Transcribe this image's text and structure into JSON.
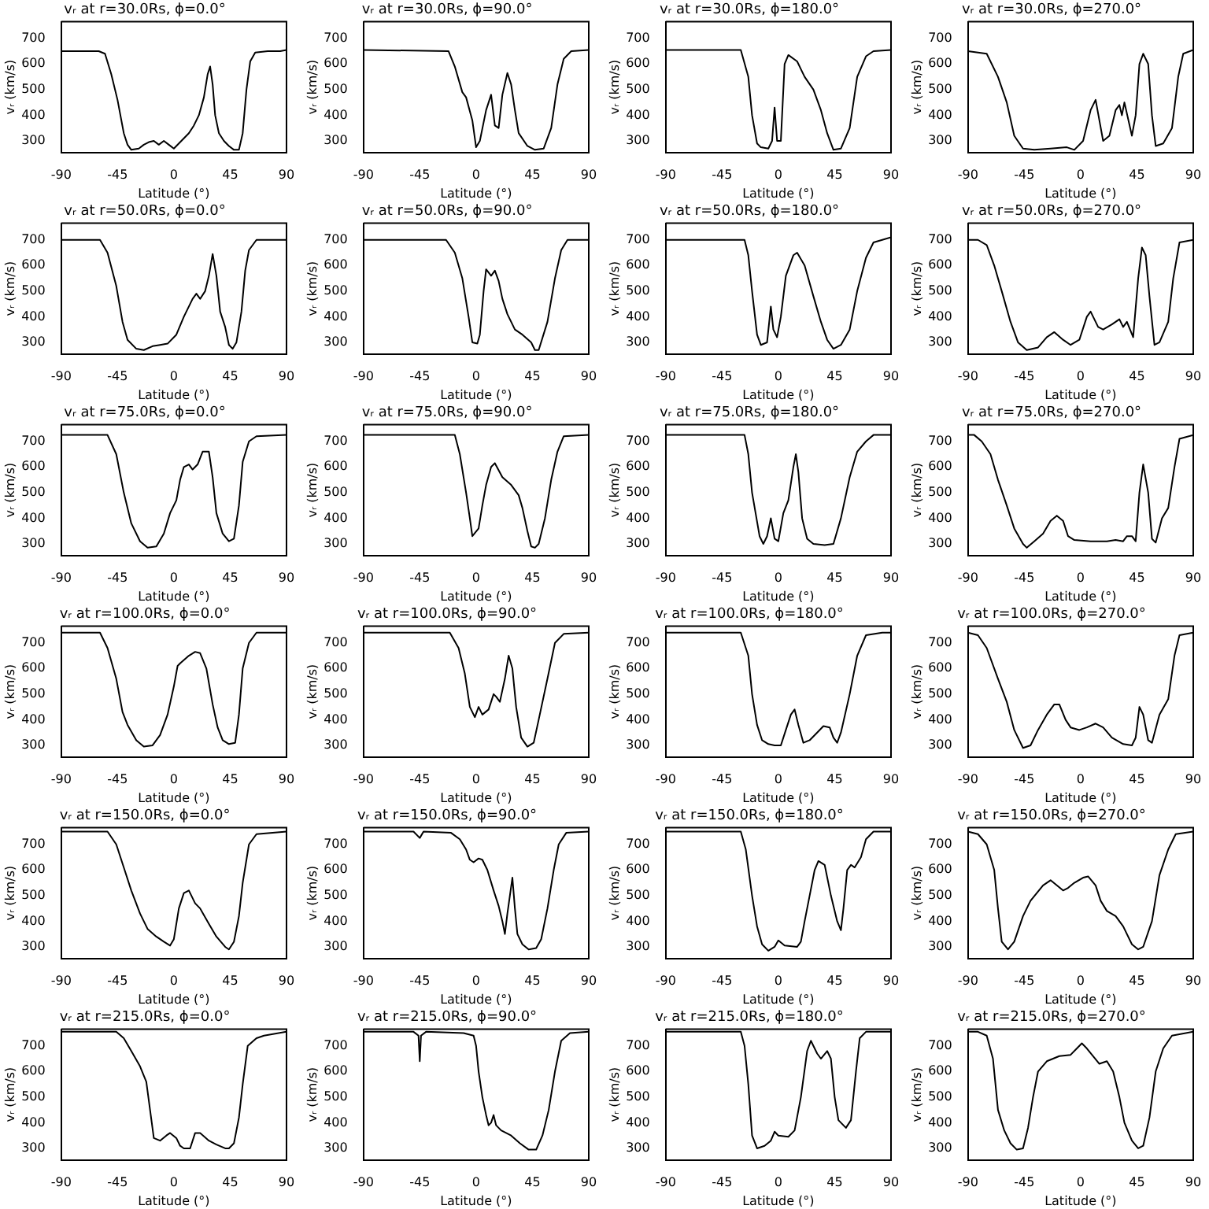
{
  "chart_data": [
    {
      "type": "line",
      "title": "vᵣ at r=30.0Rs, ϕ=0.0°",
      "xlabel": "Latitude (°)",
      "ylabel": "vᵣ (km/s)",
      "color": "#000000",
      "xlim": [
        -90,
        90
      ],
      "ylim": [
        255,
        765
      ],
      "xticks": [
        -90,
        -45,
        0,
        45,
        90
      ],
      "yticks": [
        300,
        400,
        500,
        600,
        700
      ],
      "x": [
        -90,
        -60,
        -55,
        -50,
        -45,
        -40,
        -37,
        -34,
        -28,
        -24,
        -20,
        -16,
        -12,
        -8,
        -4,
        0,
        4,
        8,
        12,
        16,
        20,
        24,
        27,
        29,
        31,
        33,
        36,
        40,
        44,
        48,
        52,
        55,
        58,
        61,
        65,
        75,
        85,
        90
      ],
      "values": [
        650,
        650,
        640,
        560,
        460,
        330,
        285,
        265,
        270,
        285,
        295,
        300,
        285,
        300,
        285,
        270,
        290,
        310,
        330,
        360,
        400,
        470,
        560,
        590,
        520,
        400,
        330,
        300,
        280,
        265,
        265,
        330,
        500,
        610,
        645,
        650,
        650,
        655
      ]
    },
    {
      "type": "line",
      "title": "vᵣ at r=30.0Rs, ϕ=90.0°",
      "xlabel": "Latitude (°)",
      "ylabel": "vᵣ (km/s)",
      "color": "#000000",
      "xlim": [
        -90,
        90
      ],
      "ylim": [
        255,
        765
      ],
      "xticks": [
        -90,
        -45,
        0,
        45,
        90
      ],
      "yticks": [
        300,
        400,
        500,
        600,
        700
      ],
      "x": [
        -90,
        -22,
        -17,
        -11,
        -8,
        -3,
        0,
        3,
        8,
        12,
        15,
        18,
        21,
        25,
        28,
        31,
        34,
        41,
        47,
        54,
        60,
        65,
        70,
        76,
        90
      ],
      "values": [
        655,
        650,
        590,
        490,
        470,
        380,
        275,
        300,
        420,
        480,
        360,
        350,
        480,
        565,
        520,
        420,
        330,
        280,
        265,
        270,
        350,
        520,
        620,
        650,
        655
      ]
    },
    {
      "type": "line",
      "title": "vᵣ at r=30.0Rs, ϕ=180.0°",
      "xlabel": "Latitude (°)",
      "ylabel": "vᵣ (km/s)",
      "color": "#000000",
      "xlim": [
        -90,
        90
      ],
      "ylim": [
        255,
        765
      ],
      "xticks": [
        -90,
        -45,
        0,
        45,
        90
      ],
      "yticks": [
        300,
        400,
        500,
        600,
        700
      ],
      "x": [
        -90,
        -30,
        -24,
        -21,
        -17,
        -14,
        -8,
        -5,
        -3,
        -1,
        2,
        5,
        8,
        15,
        21,
        28,
        34,
        39,
        44,
        50,
        57,
        63,
        70,
        76,
        90
      ],
      "values": [
        655,
        655,
        550,
        400,
        290,
        275,
        270,
        300,
        430,
        300,
        300,
        600,
        635,
        610,
        550,
        500,
        420,
        330,
        265,
        270,
        350,
        550,
        630,
        650,
        655
      ]
    },
    {
      "type": "line",
      "title": "vᵣ at r=30.0Rs, ϕ=270.0°",
      "xlabel": "Latitude (°)",
      "ylabel": "vᵣ (km/s)",
      "color": "#000000",
      "xlim": [
        -90,
        90
      ],
      "ylim": [
        255,
        765
      ],
      "xticks": [
        -90,
        -45,
        0,
        45,
        90
      ],
      "yticks": [
        300,
        400,
        500,
        600,
        700
      ],
      "x": [
        -90,
        -75,
        -66,
        -59,
        -53,
        -46,
        -37,
        -24,
        -11,
        -5,
        2,
        8,
        12,
        15,
        18,
        23,
        28,
        31,
        33,
        35,
        41,
        44,
        47,
        50,
        54,
        57,
        60,
        66,
        73,
        78,
        82,
        90
      ],
      "values": [
        650,
        640,
        550,
        450,
        320,
        270,
        265,
        270,
        275,
        265,
        300,
        420,
        460,
        380,
        300,
        320,
        420,
        440,
        400,
        450,
        320,
        400,
        600,
        640,
        600,
        400,
        280,
        290,
        350,
        550,
        640,
        655
      ]
    },
    {
      "type": "line",
      "title": "vᵣ at r=50.0Rs, ϕ=0.0°",
      "xlabel": "Latitude (°)",
      "ylabel": "vᵣ (km/s)",
      "color": "#000000",
      "xlim": [
        -90,
        90
      ],
      "ylim": [
        255,
        765
      ],
      "xticks": [
        -90,
        -45,
        0,
        45,
        90
      ],
      "yticks": [
        300,
        400,
        500,
        600,
        700
      ],
      "x": [
        -90,
        -59,
        -53,
        -46,
        -41,
        -37,
        -30,
        -24,
        -17,
        -11,
        -5,
        2,
        8,
        15,
        18,
        21,
        25,
        28,
        31,
        34,
        37,
        41,
        44,
        47,
        50,
        54,
        57,
        60,
        66,
        90
      ],
      "values": [
        700,
        700,
        650,
        520,
        380,
        310,
        275,
        270,
        285,
        290,
        295,
        330,
        400,
        470,
        490,
        470,
        500,
        560,
        645,
        560,
        420,
        360,
        290,
        275,
        300,
        420,
        580,
        660,
        700,
        700
      ]
    },
    {
      "type": "line",
      "title": "vᵣ at r=50.0Rs, ϕ=90.0°",
      "xlabel": "Latitude (°)",
      "ylabel": "vᵣ (km/s)",
      "color": "#000000",
      "xlim": [
        -90,
        90
      ],
      "ylim": [
        255,
        765
      ],
      "xticks": [
        -90,
        -45,
        0,
        45,
        90
      ],
      "yticks": [
        300,
        400,
        500,
        600,
        700
      ],
      "x": [
        -90,
        -24,
        -17,
        -11,
        -6,
        -3,
        1,
        3,
        6,
        8,
        12,
        15,
        18,
        21,
        25,
        31,
        37,
        44,
        47,
        50,
        57,
        63,
        68,
        73,
        90
      ],
      "values": [
        700,
        700,
        650,
        550,
        400,
        300,
        295,
        330,
        500,
        585,
        560,
        580,
        540,
        470,
        410,
        350,
        330,
        300,
        270,
        270,
        380,
        550,
        660,
        700,
        700
      ]
    },
    {
      "type": "line",
      "title": "vᵣ at r=50.0Rs, ϕ=180.0°",
      "xlabel": "Latitude (°)",
      "ylabel": "vᵣ (km/s)",
      "color": "#000000",
      "xlim": [
        -90,
        90
      ],
      "ylim": [
        255,
        765
      ],
      "xticks": [
        -90,
        -45,
        0,
        45,
        90
      ],
      "yticks": [
        300,
        400,
        500,
        600,
        700
      ],
      "x": [
        -90,
        -27,
        -24,
        -21,
        -17,
        -14,
        -9,
        -6,
        -4,
        -1,
        2,
        6,
        12,
        15,
        21,
        28,
        34,
        39,
        44,
        50,
        57,
        63,
        70,
        76,
        83,
        90
      ],
      "values": [
        700,
        700,
        640,
        500,
        330,
        290,
        300,
        440,
        350,
        320,
        400,
        560,
        640,
        650,
        600,
        480,
        380,
        310,
        275,
        290,
        350,
        500,
        630,
        690,
        700,
        710
      ]
    },
    {
      "type": "line",
      "title": "vᵣ at r=50.0Rs, ϕ=270.0°",
      "xlabel": "Latitude (°)",
      "ylabel": "vᵣ (km/s)",
      "color": "#000000",
      "xlim": [
        -90,
        90
      ],
      "ylim": [
        255,
        765
      ],
      "xticks": [
        -90,
        -45,
        0,
        45,
        90
      ],
      "yticks": [
        300,
        400,
        500,
        600,
        700
      ],
      "x": [
        -90,
        -82,
        -75,
        -69,
        -63,
        -56,
        -50,
        -43,
        -34,
        -27,
        -21,
        -14,
        -8,
        -1,
        5,
        8,
        14,
        18,
        25,
        31,
        34,
        37,
        42,
        46,
        49,
        52,
        55,
        59,
        63,
        70,
        74,
        79,
        90
      ],
      "values": [
        700,
        700,
        680,
        600,
        500,
        380,
        300,
        270,
        280,
        320,
        340,
        310,
        290,
        310,
        400,
        420,
        360,
        350,
        370,
        390,
        360,
        380,
        320,
        550,
        670,
        640,
        480,
        290,
        300,
        380,
        550,
        690,
        700
      ]
    },
    {
      "type": "line",
      "title": "vᵣ at r=75.0Rs, ϕ=0.0°",
      "xlabel": "Latitude (°)",
      "ylabel": "vᵣ (km/s)",
      "color": "#000000",
      "xlim": [
        -90,
        90
      ],
      "ylim": [
        255,
        765
      ],
      "xticks": [
        -90,
        -45,
        0,
        45,
        90
      ],
      "yticks": [
        300,
        400,
        500,
        600,
        700
      ],
      "x": [
        -90,
        -53,
        -46,
        -40,
        -34,
        -27,
        -21,
        -14,
        -8,
        -3,
        2,
        5,
        8,
        12,
        15,
        19,
        23,
        28,
        31,
        34,
        39,
        44,
        48,
        52,
        55,
        60,
        66,
        90
      ],
      "values": [
        725,
        725,
        650,
        500,
        380,
        310,
        285,
        290,
        340,
        420,
        470,
        550,
        600,
        610,
        590,
        610,
        660,
        660,
        560,
        420,
        340,
        310,
        320,
        450,
        620,
        700,
        720,
        725
      ]
    },
    {
      "type": "line",
      "title": "vᵣ at r=75.0Rs, ϕ=90.0°",
      "xlabel": "Latitude (°)",
      "ylabel": "vᵣ (km/s)",
      "color": "#000000",
      "xlim": [
        -90,
        90
      ],
      "ylim": [
        255,
        765
      ],
      "xticks": [
        -90,
        -45,
        0,
        45,
        90
      ],
      "yticks": [
        300,
        400,
        500,
        600,
        700
      ],
      "x": [
        -90,
        -17,
        -13,
        -8,
        -5,
        -3,
        2,
        5,
        8,
        12,
        15,
        21,
        28,
        34,
        37,
        41,
        44,
        47,
        50,
        55,
        60,
        65,
        70,
        90
      ],
      "values": [
        725,
        725,
        650,
        500,
        400,
        330,
        360,
        450,
        530,
        600,
        615,
        560,
        530,
        490,
        440,
        350,
        290,
        285,
        300,
        400,
        550,
        660,
        720,
        725
      ]
    },
    {
      "type": "line",
      "title": "vᵣ at r=75.0Rs, ϕ=180.0°",
      "xlabel": "Latitude (°)",
      "ylabel": "vᵣ (km/s)",
      "color": "#000000",
      "xlim": [
        -90,
        90
      ],
      "ylim": [
        255,
        765
      ],
      "xticks": [
        -90,
        -45,
        0,
        45,
        90
      ],
      "yticks": [
        300,
        400,
        500,
        600,
        700
      ],
      "x": [
        -90,
        -27,
        -24,
        -21,
        -15,
        -12,
        -9,
        -6,
        -3,
        0,
        4,
        8,
        12,
        14,
        16,
        19,
        23,
        28,
        37,
        44,
        50,
        57,
        63,
        70,
        76,
        90
      ],
      "values": [
        725,
        725,
        650,
        500,
        330,
        300,
        330,
        400,
        320,
        310,
        420,
        470,
        600,
        650,
        580,
        400,
        320,
        300,
        295,
        300,
        400,
        560,
        660,
        700,
        725,
        725
      ]
    },
    {
      "type": "line",
      "title": "vᵣ at r=75.0Rs, ϕ=270.0°",
      "xlabel": "Latitude (°)",
      "ylabel": "vᵣ (km/s)",
      "color": "#000000",
      "xlim": [
        -90,
        90
      ],
      "ylim": [
        255,
        765
      ],
      "xticks": [
        -90,
        -45,
        0,
        45,
        90
      ],
      "yticks": [
        300,
        400,
        500,
        600,
        700
      ],
      "x": [
        -90,
        -85,
        -79,
        -72,
        -66,
        -59,
        -53,
        -46,
        -43,
        -37,
        -30,
        -24,
        -19,
        -14,
        -10,
        -5,
        8,
        21,
        28,
        34,
        37,
        41,
        44,
        47,
        50,
        54,
        57,
        60,
        65,
        70,
        75,
        79,
        90
      ],
      "values": [
        725,
        725,
        700,
        650,
        550,
        450,
        360,
        300,
        285,
        310,
        340,
        390,
        410,
        390,
        330,
        315,
        310,
        310,
        315,
        310,
        330,
        330,
        310,
        500,
        610,
        500,
        320,
        305,
        400,
        440,
        600,
        710,
        725
      ]
    },
    {
      "type": "line",
      "title": "vᵣ at r=100.0Rs, ϕ=0.0°",
      "xlabel": "Latitude (°)",
      "ylabel": "vᵣ (km/s)",
      "color": "#000000",
      "xlim": [
        -90,
        90
      ],
      "ylim": [
        255,
        765
      ],
      "xticks": [
        -90,
        -45,
        0,
        45,
        90
      ],
      "yticks": [
        300,
        400,
        500,
        600,
        700
      ],
      "x": [
        -90,
        -59,
        -53,
        -46,
        -41,
        -37,
        -30,
        -24,
        -17,
        -11,
        -5,
        0,
        3,
        5,
        12,
        17,
        21,
        26,
        31,
        35,
        39,
        44,
        49,
        52,
        55,
        60,
        66,
        90
      ],
      "values": [
        740,
        740,
        680,
        560,
        430,
        380,
        320,
        295,
        300,
        340,
        420,
        530,
        610,
        620,
        650,
        665,
        660,
        600,
        460,
        370,
        320,
        305,
        310,
        420,
        600,
        700,
        740,
        740
      ]
    },
    {
      "type": "line",
      "title": "vᵣ at r=100.0Rs, ϕ=90.0°",
      "xlabel": "Latitude (°)",
      "ylabel": "vᵣ (km/s)",
      "color": "#000000",
      "xlim": [
        -90,
        90
      ],
      "ylim": [
        255,
        765
      ],
      "xticks": [
        -90,
        -45,
        0,
        45,
        90
      ],
      "yticks": [
        300,
        400,
        500,
        600,
        700
      ],
      "x": [
        -90,
        -21,
        -14,
        -9,
        -5,
        -1,
        2,
        5,
        10,
        14,
        16,
        19,
        23,
        26,
        29,
        32,
        36,
        41,
        46,
        50,
        57,
        63,
        70,
        90
      ],
      "values": [
        740,
        740,
        680,
        580,
        450,
        410,
        450,
        420,
        440,
        500,
        490,
        470,
        560,
        650,
        600,
        450,
        330,
        295,
        310,
        400,
        560,
        700,
        735,
        740
      ]
    },
    {
      "type": "line",
      "title": "vᵣ at r=100.0Rs, ϕ=180.0°",
      "xlabel": "Latitude (°)",
      "ylabel": "vᵣ (km/s)",
      "color": "#000000",
      "xlim": [
        -90,
        90
      ],
      "ylim": [
        255,
        765
      ],
      "xticks": [
        -90,
        -45,
        0,
        45,
        90
      ],
      "yticks": [
        300,
        400,
        500,
        600,
        700
      ],
      "x": [
        -90,
        -30,
        -24,
        -21,
        -17,
        -13,
        -8,
        -3,
        2,
        6,
        10,
        13,
        16,
        20,
        25,
        31,
        36,
        41,
        44,
        47,
        50,
        57,
        63,
        70,
        83,
        90
      ],
      "values": [
        740,
        740,
        650,
        500,
        380,
        320,
        305,
        300,
        300,
        360,
        420,
        440,
        380,
        310,
        320,
        350,
        375,
        370,
        330,
        310,
        350,
        500,
        650,
        730,
        740,
        740
      ]
    },
    {
      "type": "line",
      "title": "vᵣ at r=100.0Rs, ϕ=270.0°",
      "xlabel": "Latitude (°)",
      "ylabel": "vᵣ (km/s)",
      "color": "#000000",
      "xlim": [
        -90,
        90
      ],
      "ylim": [
        255,
        765
      ],
      "xticks": [
        -90,
        -45,
        0,
        45,
        90
      ],
      "yticks": [
        300,
        400,
        500,
        600,
        700
      ],
      "x": [
        -90,
        -82,
        -75,
        -66,
        -59,
        -53,
        -46,
        -40,
        -34,
        -27,
        -21,
        -17,
        -12,
        -8,
        -1,
        5,
        12,
        18,
        25,
        34,
        41,
        44,
        47,
        50,
        54,
        57,
        63,
        70,
        75,
        79,
        90
      ],
      "values": [
        740,
        730,
        680,
        560,
        470,
        360,
        290,
        300,
        360,
        420,
        460,
        460,
        400,
        370,
        360,
        370,
        385,
        370,
        330,
        305,
        300,
        330,
        450,
        420,
        320,
        310,
        420,
        480,
        650,
        730,
        740
      ]
    },
    {
      "type": "line",
      "title": "vᵣ at r=150.0Rs, ϕ=0.0°",
      "xlabel": "Latitude (°)",
      "ylabel": "vᵣ (km/s)",
      "color": "#000000",
      "xlim": [
        -90,
        90
      ],
      "ylim": [
        255,
        765
      ],
      "xticks": [
        -90,
        -45,
        0,
        45,
        90
      ],
      "yticks": [
        300,
        400,
        500,
        600,
        700
      ],
      "x": [
        -90,
        -53,
        -46,
        -40,
        -34,
        -27,
        -21,
        -14,
        -8,
        -3,
        0,
        4,
        8,
        12,
        17,
        21,
        28,
        34,
        41,
        44,
        48,
        52,
        55,
        60,
        66,
        90
      ],
      "values": [
        750,
        750,
        700,
        610,
        520,
        430,
        370,
        340,
        320,
        305,
        330,
        450,
        510,
        520,
        470,
        450,
        390,
        340,
        300,
        290,
        320,
        420,
        550,
        700,
        740,
        750
      ]
    },
    {
      "type": "line",
      "title": "vᵣ at r=150.0Rs, ϕ=90.0°",
      "xlabel": "Latitude (°)",
      "ylabel": "vᵣ (km/s)",
      "color": "#000000",
      "xlim": [
        -90,
        90
      ],
      "ylim": [
        255,
        765
      ],
      "xticks": [
        -90,
        -45,
        0,
        45,
        90
      ],
      "yticks": [
        300,
        400,
        500,
        600,
        700
      ],
      "x": [
        -90,
        -50,
        -45,
        -42,
        -20,
        -13,
        -8,
        -5,
        -2,
        2,
        5,
        9,
        14,
        18,
        21,
        23,
        25,
        27,
        29,
        31,
        33,
        37,
        42,
        48,
        52,
        57,
        62,
        66,
        72,
        90
      ],
      "values": [
        750,
        750,
        725,
        750,
        745,
        720,
        680,
        640,
        630,
        645,
        640,
        600,
        520,
        460,
        400,
        350,
        430,
        500,
        570,
        450,
        350,
        310,
        290,
        295,
        330,
        450,
        600,
        700,
        745,
        750
      ]
    },
    {
      "type": "line",
      "title": "vᵣ at r=150.0Rs, ϕ=180.0°",
      "xlabel": "Latitude (°)",
      "ylabel": "vᵣ (km/s)",
      "color": "#000000",
      "xlim": [
        -90,
        90
      ],
      "ylim": [
        255,
        765
      ],
      "xticks": [
        -90,
        -45,
        0,
        45,
        90
      ],
      "yticks": [
        300,
        400,
        500,
        600,
        700
      ],
      "x": [
        -90,
        -30,
        -26,
        -21,
        -17,
        -13,
        -8,
        -3,
        0,
        5,
        15,
        18,
        21,
        25,
        29,
        32,
        37,
        42,
        47,
        50,
        52,
        55,
        58,
        61,
        66,
        70,
        76,
        90
      ],
      "values": [
        750,
        750,
        680,
        500,
        380,
        310,
        285,
        300,
        325,
        305,
        300,
        320,
        400,
        500,
        600,
        635,
        620,
        500,
        400,
        365,
        450,
        600,
        620,
        610,
        650,
        720,
        750,
        750
      ]
    },
    {
      "type": "line",
      "title": "vᵣ at r=150.0Rs, ϕ=270.0°",
      "xlabel": "Latitude (°)",
      "ylabel": "vᵣ (km/s)",
      "color": "#000000",
      "xlim": [
        -90,
        90
      ],
      "ylim": [
        255,
        765
      ],
      "xticks": [
        -90,
        -45,
        0,
        45,
        90
      ],
      "yticks": [
        300,
        400,
        500,
        600,
        700
      ],
      "x": [
        -90,
        -82,
        -75,
        -69,
        -66,
        -63,
        -58,
        -53,
        -46,
        -40,
        -30,
        -24,
        -19,
        -14,
        -10,
        -5,
        2,
        6,
        12,
        16,
        21,
        28,
        34,
        41,
        46,
        50,
        57,
        63,
        70,
        76,
        90
      ],
      "values": [
        750,
        740,
        700,
        600,
        450,
        320,
        290,
        320,
        420,
        480,
        540,
        560,
        540,
        520,
        530,
        550,
        570,
        575,
        540,
        480,
        440,
        420,
        380,
        310,
        290,
        300,
        400,
        580,
        680,
        740,
        750
      ]
    },
    {
      "type": "line",
      "title": "vᵣ at r=215.0Rs, ϕ=0.0°",
      "xlabel": "Latitude (°)",
      "ylabel": "vᵣ (km/s)",
      "color": "#000000",
      "xlim": [
        -90,
        90
      ],
      "ylim": [
        255,
        765
      ],
      "xticks": [
        -90,
        -45,
        0,
        45,
        90
      ],
      "yticks": [
        300,
        400,
        500,
        600,
        700
      ],
      "x": [
        -90,
        -46,
        -40,
        -34,
        -27,
        -22,
        -19,
        -16,
        -11,
        -6,
        -3,
        2,
        5,
        8,
        13,
        17,
        21,
        28,
        34,
        41,
        44,
        48,
        52,
        55,
        59,
        66,
        72,
        90
      ],
      "values": [
        755,
        755,
        730,
        680,
        620,
        560,
        450,
        340,
        330,
        350,
        360,
        340,
        310,
        300,
        300,
        360,
        360,
        330,
        315,
        300,
        300,
        320,
        420,
        550,
        700,
        730,
        740,
        755
      ]
    },
    {
      "type": "line",
      "title": "vᵣ at r=215.0Rs, ϕ=90.0°",
      "xlabel": "Latitude (°)",
      "ylabel": "vᵣ (km/s)",
      "color": "#000000",
      "xlim": [
        -90,
        90
      ],
      "ylim": [
        255,
        765
      ],
      "xticks": [
        -90,
        -45,
        0,
        45,
        90
      ],
      "yticks": [
        300,
        400,
        500,
        600,
        700
      ],
      "x": [
        -90,
        -50,
        -46,
        -45,
        -44,
        -40,
        -10,
        -2,
        0,
        2,
        5,
        8,
        10,
        12,
        14,
        16,
        20,
        28,
        35,
        42,
        48,
        53,
        58,
        63,
        68,
        75,
        90
      ],
      "values": [
        755,
        755,
        740,
        640,
        740,
        755,
        750,
        740,
        700,
        600,
        500,
        430,
        390,
        400,
        430,
        390,
        370,
        350,
        320,
        295,
        295,
        350,
        450,
        600,
        720,
        750,
        755
      ]
    },
    {
      "type": "line",
      "title": "vᵣ at r=215.0Rs, ϕ=180.0°",
      "xlabel": "Latitude (°)",
      "ylabel": "vᵣ (km/s)",
      "color": "#000000",
      "xlim": [
        -90,
        90
      ],
      "ylim": [
        255,
        765
      ],
      "xticks": [
        -90,
        -45,
        0,
        45,
        90
      ],
      "yticks": [
        300,
        400,
        500,
        600,
        700
      ],
      "x": [
        -90,
        -30,
        -27,
        -24,
        -21,
        -17,
        -11,
        -6,
        -3,
        0,
        8,
        13,
        18,
        23,
        26,
        31,
        34,
        39,
        42,
        45,
        48,
        54,
        58,
        62,
        65,
        70,
        90
      ],
      "values": [
        755,
        755,
        700,
        550,
        350,
        300,
        310,
        330,
        365,
        350,
        345,
        370,
        500,
        680,
        720,
        670,
        650,
        680,
        650,
        500,
        410,
        380,
        410,
        600,
        730,
        755,
        755
      ]
    },
    {
      "type": "line",
      "title": "vᵣ at r=215.0Rs, ϕ=270.0°",
      "xlabel": "Latitude (°)",
      "ylabel": "vᵣ (km/s)",
      "color": "#000000",
      "xlim": [
        -90,
        90
      ],
      "ylim": [
        255,
        765
      ],
      "xticks": [
        -90,
        -45,
        0,
        45,
        90
      ],
      "yticks": [
        300,
        400,
        500,
        600,
        700
      ],
      "x": [
        -90,
        -82,
        -75,
        -70,
        -66,
        -61,
        -56,
        -51,
        -46,
        -42,
        -38,
        -34,
        -27,
        -17,
        -8,
        -3,
        1,
        5,
        10,
        15,
        21,
        26,
        31,
        35,
        41,
        46,
        50,
        55,
        60,
        66,
        73,
        90
      ],
      "values": [
        755,
        755,
        740,
        650,
        450,
        370,
        320,
        295,
        300,
        380,
        500,
        600,
        640,
        660,
        665,
        690,
        710,
        690,
        660,
        630,
        640,
        600,
        500,
        400,
        330,
        300,
        310,
        420,
        600,
        690,
        740,
        755
      ]
    }
  ]
}
